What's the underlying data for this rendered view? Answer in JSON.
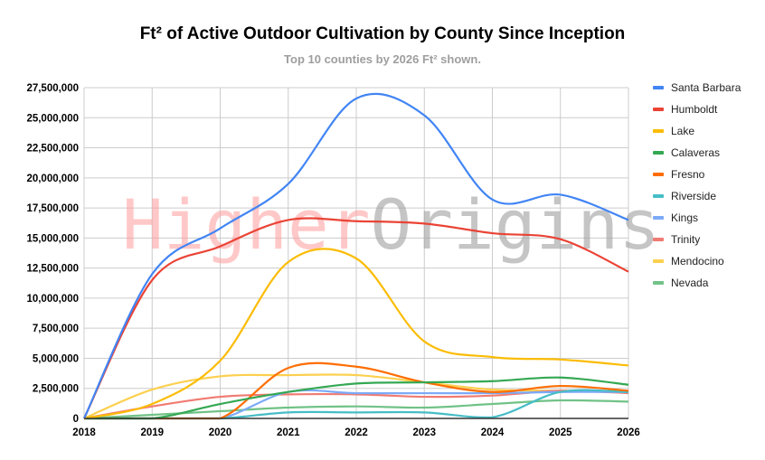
{
  "chart_data": {
    "type": "line",
    "title": "Ft² of Active Outdoor Cultivation by County Since Inception",
    "subtitle": "Top 10 counties by 2026 Ft² shown.",
    "watermark": [
      "Higher",
      "Origins"
    ],
    "xlabel": "",
    "ylabel": "",
    "x": [
      "2018",
      "2019",
      "2020",
      "2021",
      "2022",
      "2023",
      "2024",
      "2025",
      "2026"
    ],
    "ylim": [
      0,
      27500000
    ],
    "yticks": [
      "0",
      "2,500,000",
      "5,000,000",
      "7,500,000",
      "10,000,000",
      "12,500,000",
      "15,000,000",
      "17,500,000",
      "20,000,000",
      "22,500,000",
      "25,000,000",
      "27,500,000"
    ],
    "grid": true,
    "legend_position": "right",
    "series": [
      {
        "name": "Santa Barbara",
        "color": "#4285f4",
        "values": [
          0,
          12000000,
          15800000,
          19500000,
          26600000,
          25200000,
          18200000,
          18600000,
          16500000
        ]
      },
      {
        "name": "Humboldt",
        "color": "#ea4335",
        "values": [
          0,
          11500000,
          14300000,
          16500000,
          16400000,
          16200000,
          15400000,
          14900000,
          12200000
        ]
      },
      {
        "name": "Lake",
        "color": "#fbbc04",
        "values": [
          0,
          1200000,
          4800000,
          13000000,
          13300000,
          6400000,
          5100000,
          4900000,
          4400000
        ]
      },
      {
        "name": "Calaveras",
        "color": "#34a853",
        "values": [
          0,
          0,
          1200000,
          2200000,
          2900000,
          3000000,
          3100000,
          3400000,
          2800000
        ]
      },
      {
        "name": "Fresno",
        "color": "#ff6d01",
        "values": [
          0,
          0,
          0,
          4200000,
          4300000,
          3000000,
          2200000,
          2700000,
          2300000
        ]
      },
      {
        "name": "Riverside",
        "color": "#46bdc6",
        "values": [
          0,
          0,
          0,
          500000,
          500000,
          500000,
          100000,
          2200000,
          2200000
        ]
      },
      {
        "name": "Kings",
        "color": "#7baaf7",
        "values": [
          0,
          0,
          0,
          2200000,
          2100000,
          2100000,
          2100000,
          2200000,
          2200000
        ]
      },
      {
        "name": "Trinity",
        "color": "#f07b72",
        "values": [
          0,
          1000000,
          1800000,
          2000000,
          2000000,
          1800000,
          1900000,
          2300000,
          2100000
        ]
      },
      {
        "name": "Mendocino",
        "color": "#fcd04f",
        "values": [
          0,
          2400000,
          3500000,
          3600000,
          3600000,
          3000000,
          2400000,
          2300000,
          2200000
        ]
      },
      {
        "name": "Nevada",
        "color": "#71c287",
        "values": [
          0,
          300000,
          600000,
          900000,
          1000000,
          900000,
          1200000,
          1500000,
          1400000
        ]
      }
    ]
  }
}
